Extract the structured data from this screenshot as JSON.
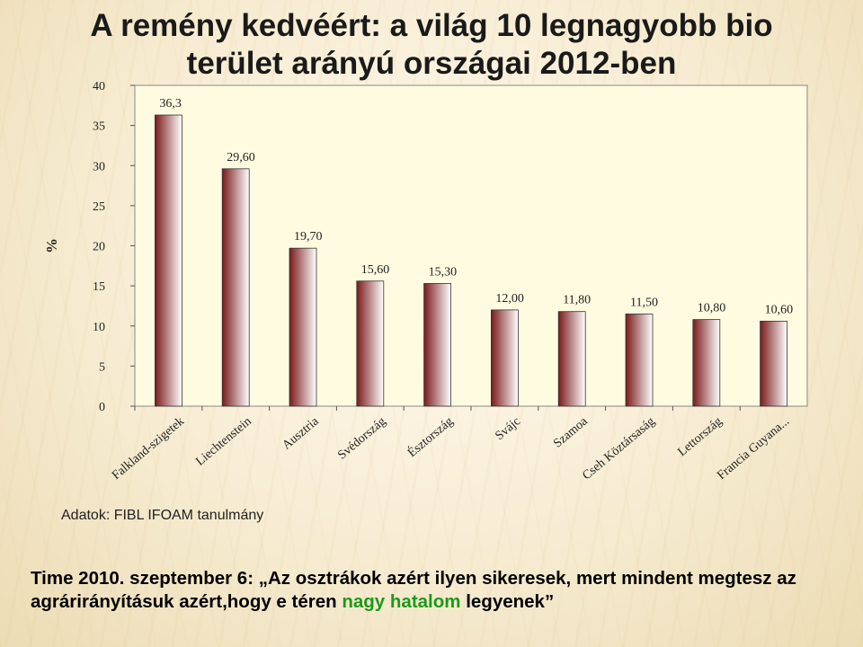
{
  "slide": {
    "title_line1": "A remény kedvéért: a világ 10 legnagyobb bio",
    "title_line2": "terület arányú országai 2012-ben",
    "source": "Adatok: FIBL IFOAM tanulmány",
    "quote_prefix": "Time 2010. szeptember 6: „Az osztrákok azért ilyen sikeresek, mert mindent megtesz az agrárirányításuk azért,hogy e téren ",
    "quote_highlight": "nagy hatalom",
    "quote_suffix": " legyenek”",
    "highlight_color": "#1a9a1a"
  },
  "chart_data": {
    "type": "bar",
    "title": "",
    "ylabel": "%",
    "xlabel": "",
    "ylim": [
      0,
      40
    ],
    "yticks": [
      0,
      5,
      10,
      15,
      20,
      25,
      30,
      35,
      40
    ],
    "grid": false,
    "categories": [
      "Falkland-szigetek",
      "Liechtenstein",
      "Ausztria",
      "Svédország",
      "Észtország",
      "Svájc",
      "Szamoa",
      "Cseh Köztársaság",
      "Lettország",
      "Francia Guyana..."
    ],
    "values": [
      36.3,
      29.6,
      19.7,
      15.6,
      15.3,
      12.0,
      11.8,
      11.5,
      10.8,
      10.6
    ],
    "data_labels": [
      "36,3",
      "29,60",
      "19,70",
      "15,60",
      "15,30",
      "12,00",
      "11,80",
      "11,50",
      "10,80",
      "10,60"
    ],
    "bar_gradient": [
      "#7a1a1a",
      "#ffffff"
    ]
  }
}
